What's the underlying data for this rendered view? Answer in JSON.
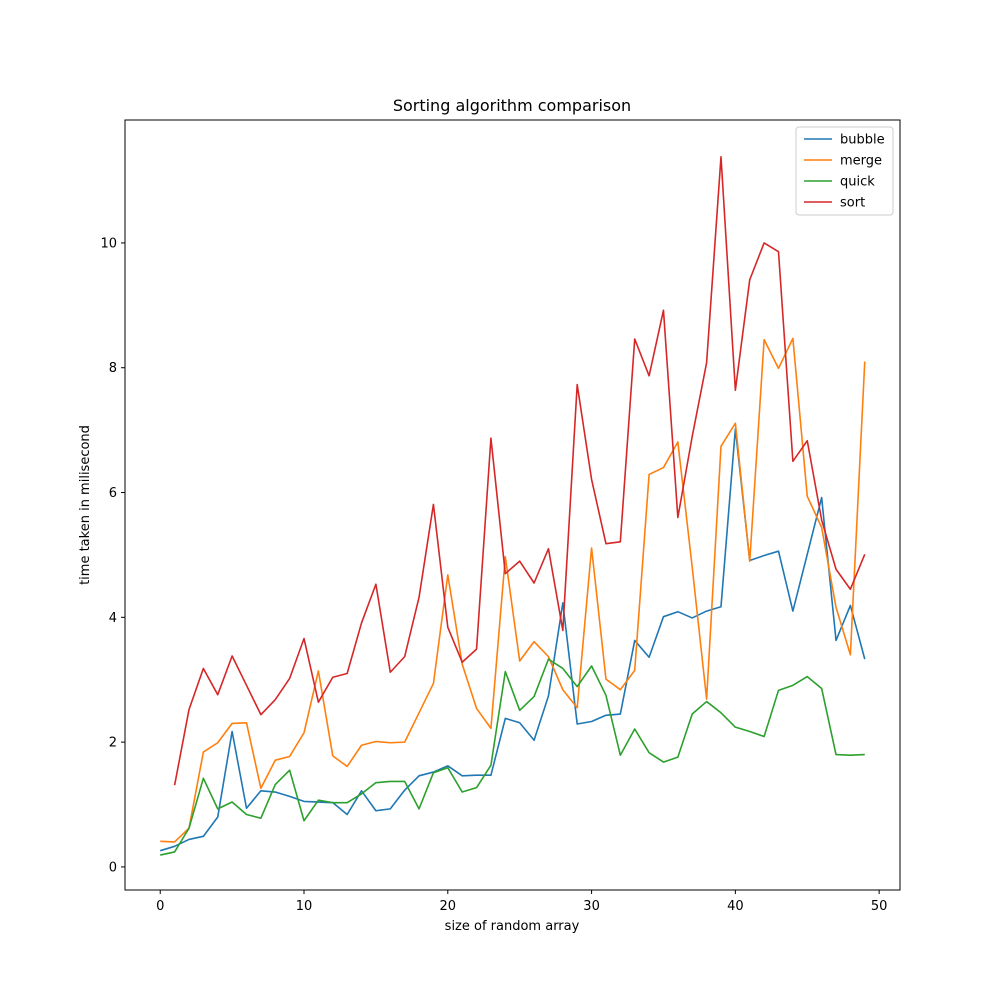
{
  "chart_data": {
    "type": "line",
    "title": "Sorting algorithm comparison",
    "xlabel": "size of random array",
    "ylabel": "time taken in milisecond",
    "xlim": [
      -2.45,
      51.45
    ],
    "ylim": [
      -0.37,
      11.97
    ],
    "xticks": [
      0,
      10,
      20,
      30,
      40,
      50
    ],
    "yticks": [
      0,
      2,
      4,
      6,
      8,
      10
    ],
    "legend_position": "upper-right",
    "series": [
      {
        "name": "bubble",
        "color": "#1f77b4",
        "x": [
          0,
          1,
          2,
          3,
          4,
          5,
          6,
          7,
          8,
          9,
          10,
          11,
          12,
          13,
          14,
          15,
          16,
          17,
          18,
          19,
          20,
          21,
          22,
          23,
          24,
          25,
          26,
          27,
          28,
          29,
          30,
          31,
          32,
          33,
          34,
          35,
          36,
          37,
          38,
          39,
          40,
          41,
          42,
          43,
          44,
          45,
          46,
          47,
          48,
          49
        ],
        "y": [
          0.26,
          0.33,
          0.44,
          0.49,
          0.8,
          2.17,
          0.94,
          1.22,
          1.2,
          1.13,
          1.05,
          1.04,
          1.03,
          0.84,
          1.22,
          0.9,
          0.93,
          1.23,
          1.46,
          1.52,
          1.62,
          1.46,
          1.47,
          1.47,
          2.38,
          2.31,
          2.03,
          2.74,
          4.23,
          2.29,
          2.33,
          2.43,
          2.45,
          3.63,
          3.36,
          4.01,
          4.09,
          3.99,
          4.1,
          4.17,
          7.02,
          4.91,
          4.99,
          5.06,
          4.1,
          5.01,
          5.92,
          3.63,
          4.19,
          3.33
        ]
      },
      {
        "name": "merge",
        "color": "#ff7f0e",
        "x": [
          0,
          1,
          2,
          3,
          4,
          5,
          6,
          7,
          8,
          9,
          10,
          11,
          12,
          13,
          14,
          15,
          16,
          17,
          18,
          19,
          20,
          21,
          22,
          23,
          24,
          25,
          26,
          27,
          28,
          29,
          30,
          31,
          32,
          33,
          34,
          35,
          36,
          37,
          38,
          39,
          40,
          41,
          42,
          43,
          44,
          45,
          46,
          47,
          48,
          49
        ],
        "y": [
          0.41,
          0.4,
          0.62,
          1.84,
          1.99,
          2.3,
          2.31,
          1.26,
          1.71,
          1.77,
          2.15,
          3.14,
          1.78,
          1.61,
          1.95,
          2.01,
          1.99,
          2.0,
          2.47,
          2.94,
          4.68,
          3.25,
          2.54,
          2.22,
          4.97,
          3.3,
          3.61,
          3.37,
          2.84,
          2.55,
          5.11,
          3.01,
          2.84,
          3.15,
          6.29,
          6.4,
          6.81,
          4.8,
          2.69,
          6.74,
          7.11,
          4.9,
          8.45,
          7.99,
          8.47,
          5.94,
          5.44,
          4.16,
          3.4,
          8.1
        ]
      },
      {
        "name": "quick",
        "color": "#2ca02c",
        "x": [
          0,
          1,
          2,
          3,
          4,
          5,
          6,
          7,
          8,
          9,
          10,
          11,
          12,
          13,
          14,
          15,
          16,
          17,
          18,
          19,
          20,
          21,
          22,
          23,
          24,
          25,
          26,
          27,
          28,
          29,
          30,
          31,
          32,
          33,
          34,
          35,
          36,
          37,
          38,
          39,
          40,
          41,
          42,
          43,
          44,
          45,
          46,
          47,
          48,
          49
        ],
        "y": [
          0.19,
          0.24,
          0.62,
          1.42,
          0.93,
          1.04,
          0.84,
          0.78,
          1.32,
          1.55,
          0.74,
          1.07,
          1.03,
          1.03,
          1.17,
          1.35,
          1.37,
          1.37,
          0.93,
          1.51,
          1.59,
          1.2,
          1.27,
          1.63,
          3.13,
          2.51,
          2.73,
          3.33,
          3.18,
          2.89,
          3.22,
          2.75,
          1.79,
          2.21,
          1.83,
          1.68,
          1.76,
          2.45,
          2.65,
          2.47,
          2.24,
          2.17,
          2.09,
          2.83,
          2.91,
          3.05,
          2.86,
          1.8,
          1.79,
          1.8
        ]
      },
      {
        "name": "sort",
        "color": "#d62728",
        "x": [
          1,
          2,
          3,
          4,
          5,
          6,
          7,
          8,
          9,
          10,
          11,
          12,
          13,
          14,
          15,
          16,
          17,
          18,
          19,
          20,
          21,
          22,
          23,
          24,
          25,
          26,
          27,
          28,
          29,
          30,
          31,
          32,
          33,
          34,
          35,
          36,
          37,
          38,
          39,
          40,
          41,
          42,
          43,
          44,
          45,
          46,
          47,
          48,
          49
        ],
        "y": [
          1.31,
          2.52,
          3.18,
          2.76,
          3.38,
          2.91,
          2.44,
          2.68,
          3.02,
          3.66,
          2.64,
          3.04,
          3.1,
          3.91,
          4.53,
          3.12,
          3.37,
          4.32,
          5.81,
          3.84,
          3.28,
          3.49,
          6.87,
          4.7,
          4.9,
          4.55,
          5.1,
          3.79,
          7.73,
          6.21,
          5.18,
          5.21,
          8.46,
          7.87,
          8.92,
          5.6,
          6.9,
          8.08,
          11.38,
          7.64,
          9.41,
          10.0,
          9.86,
          6.5,
          6.83,
          5.56,
          4.77,
          4.45,
          5.01
        ]
      }
    ]
  }
}
